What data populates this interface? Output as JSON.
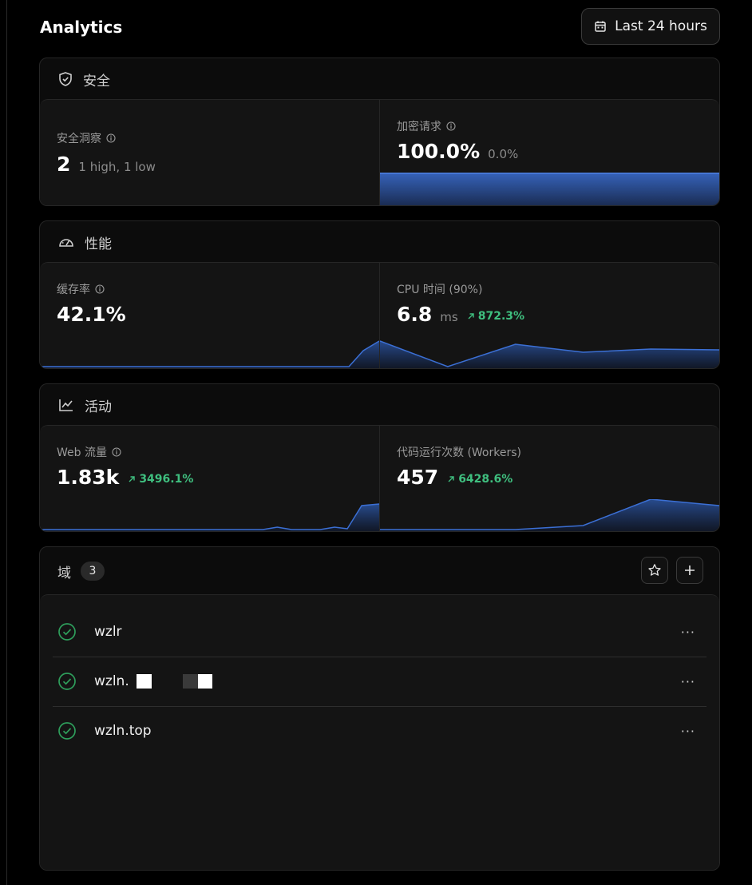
{
  "header": {
    "title": "Analytics",
    "range_label": "Last 24 hours"
  },
  "security": {
    "section_title": "安全",
    "insights": {
      "label": "安全洞察",
      "value": "2",
      "detail": "1 high, 1 low"
    },
    "encrypted": {
      "label": "加密请求",
      "value": "100.0%",
      "delta": "0.0%",
      "fill_fraction": 1.0
    }
  },
  "performance": {
    "section_title": "性能",
    "cache": {
      "label": "缓存率",
      "value": "42.1%"
    },
    "cpu": {
      "label": "CPU 时间 (90%)",
      "value": "6.8",
      "unit": "ms",
      "delta": "872.3%"
    }
  },
  "activity": {
    "section_title": "活动",
    "web": {
      "label": "Web 流量",
      "value": "1.83k",
      "delta": "3496.1%"
    },
    "workers": {
      "label": "代码运行次数 (Workers)",
      "value": "457",
      "delta": "6428.6%"
    }
  },
  "domains": {
    "title": "域",
    "count": "3",
    "items": [
      {
        "name": "wzlr",
        "status": "active"
      },
      {
        "name": "wzln.",
        "status": "active"
      },
      {
        "name": "wzln.top",
        "status": "active"
      }
    ]
  },
  "colors": {
    "accent_blue": "#3b6fd4",
    "positive_green": "#3fbf7f",
    "status_green": "#2e9e5b"
  },
  "icons": [
    "calendar-icon",
    "shield-icon",
    "gauge-icon",
    "chart-line-icon",
    "info-icon",
    "arrow-up-right-icon",
    "star-icon",
    "plus-icon",
    "check-circle-icon",
    "more-icon"
  ]
}
